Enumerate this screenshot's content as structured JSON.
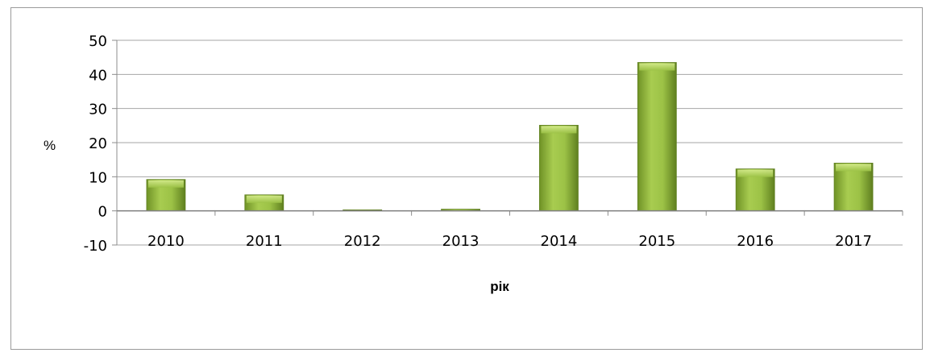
{
  "chart_data": {
    "type": "bar",
    "title": "",
    "xlabel": "рік",
    "ylabel": "%",
    "categories": [
      "2010",
      "2011",
      "2012",
      "2013",
      "2014",
      "2015",
      "2016",
      "2017"
    ],
    "values": [
      9.2,
      4.7,
      0.3,
      0.5,
      25.1,
      43.5,
      12.3,
      14.0
    ],
    "ylim": [
      -10,
      50
    ],
    "yticks": [
      "-10",
      "0",
      "10",
      "20",
      "30",
      "40",
      "50"
    ],
    "grid": true,
    "bar_color": "#8db43a",
    "bar_highlight": "#c5e07a",
    "bar_shadow": "#5f7f1f"
  }
}
